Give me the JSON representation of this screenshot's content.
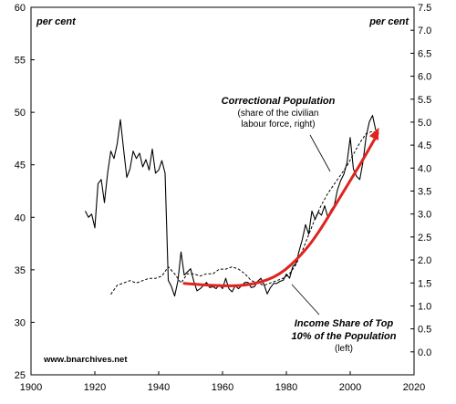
{
  "chart_data": {
    "type": "line",
    "xlim": [
      1900,
      2020
    ],
    "x_ticks": [
      "1900",
      "1920",
      "1940",
      "1960",
      "1980",
      "2000",
      "2020"
    ],
    "y_left": {
      "unit_label": "per cent",
      "ylim": [
        25,
        60
      ],
      "ticks": [
        "25",
        "30",
        "35",
        "40",
        "45",
        "50",
        "55",
        "60"
      ]
    },
    "y_right": {
      "unit_label": "per cent",
      "ylim": [
        -0.5,
        7.5
      ],
      "ticks": [
        "0.0",
        "0.5",
        "1.0",
        "1.5",
        "2.0",
        "2.5",
        "3.0",
        "3.5",
        "4.0",
        "4.5",
        "5.0",
        "5.5",
        "6.0",
        "6.5",
        "7.0",
        "7.5"
      ]
    },
    "grid": false,
    "series": [
      {
        "name": "Income Share of Top 10% of the Population",
        "axis": "left",
        "style": "solid",
        "x": [
          1917,
          1918,
          1919,
          1920,
          1921,
          1922,
          1923,
          1924,
          1925,
          1926,
          1927,
          1928,
          1929,
          1930,
          1931,
          1932,
          1933,
          1934,
          1935,
          1936,
          1937,
          1938,
          1939,
          1940,
          1941,
          1942,
          1943,
          1944,
          1945,
          1946,
          1947,
          1948,
          1949,
          1950,
          1951,
          1952,
          1953,
          1954,
          1955,
          1956,
          1957,
          1958,
          1959,
          1960,
          1961,
          1962,
          1963,
          1964,
          1965,
          1966,
          1967,
          1968,
          1969,
          1970,
          1971,
          1972,
          1973,
          1974,
          1975,
          1976,
          1977,
          1978,
          1979,
          1980,
          1981,
          1982,
          1983,
          1984,
          1985,
          1986,
          1987,
          1988,
          1989,
          1990,
          1991,
          1992,
          1993,
          1994,
          1995,
          1996,
          1997,
          1998,
          1999,
          2000,
          2001,
          2002,
          2003,
          2004,
          2005,
          2006,
          2007,
          2008
        ],
        "values": [
          40.6,
          40.0,
          40.3,
          39.0,
          43.2,
          43.6,
          41.4,
          44.2,
          46.3,
          45.6,
          47.0,
          49.3,
          46.5,
          43.8,
          44.6,
          46.3,
          45.6,
          46.1,
          44.8,
          45.5,
          44.5,
          46.5,
          44.2,
          44.5,
          45.4,
          44.2,
          34.0,
          33.4,
          32.5,
          33.9,
          36.7,
          34.5,
          34.8,
          35.1,
          33.9,
          33.0,
          33.2,
          33.5,
          33.8,
          33.3,
          33.4,
          33.2,
          33.6,
          33.2,
          34.2,
          33.2,
          32.9,
          33.5,
          33.2,
          33.5,
          33.8,
          33.8,
          33.3,
          33.4,
          33.9,
          34.2,
          33.6,
          32.7,
          33.3,
          33.7,
          33.7,
          33.9,
          34.0,
          34.6,
          34.2,
          35.3,
          35.6,
          36.8,
          37.9,
          39.3,
          38.4,
          40.6,
          39.8,
          40.5,
          40.2,
          41.1,
          40.0,
          40.7,
          41.1,
          42.6,
          43.5,
          44.1,
          45.2,
          47.6,
          44.6,
          43.9,
          43.6,
          45.3,
          47.7,
          49.1,
          49.7,
          48.3
        ]
      },
      {
        "name": "Correctional Population",
        "axis": "right",
        "style": "dashed",
        "x": [
          1925,
          1927,
          1929,
          1931,
          1933,
          1935,
          1937,
          1939,
          1941,
          1943,
          1945,
          1947,
          1949,
          1951,
          1953,
          1955,
          1957,
          1959,
          1961,
          1963,
          1965,
          1967,
          1969,
          1971,
          1973,
          1975,
          1977,
          1979,
          1981,
          1983,
          1985,
          1987,
          1989,
          1991,
          1993,
          1995,
          1997,
          1999,
          2001,
          2003,
          2005,
          2007,
          2009
        ],
        "values": [
          1.25,
          1.45,
          1.5,
          1.55,
          1.5,
          1.55,
          1.6,
          1.6,
          1.65,
          1.85,
          1.7,
          1.5,
          1.7,
          1.7,
          1.65,
          1.7,
          1.7,
          1.8,
          1.8,
          1.85,
          1.8,
          1.7,
          1.55,
          1.5,
          1.45,
          1.5,
          1.55,
          1.6,
          1.7,
          1.9,
          2.2,
          2.55,
          2.9,
          3.2,
          3.45,
          3.65,
          3.85,
          4.05,
          4.3,
          4.55,
          4.75,
          4.8,
          4.75
        ]
      }
    ],
    "trend_arrow": {
      "color": "#e0231e",
      "x": [
        1948,
        1960,
        1970,
        1978,
        1985,
        1990,
        1995,
        2000,
        2005,
        2009
      ],
      "values": [
        33.7,
        33.4,
        33.6,
        34.5,
        36.5,
        38.5,
        41.0,
        43.5,
        46.0,
        48.2
      ]
    },
    "annotations": {
      "correctional_title": "Correctional Population",
      "correctional_sub1": "(share of the civilian",
      "correctional_sub2": "labour force, right)",
      "income_line1": "Income Share of Top",
      "income_line2": "10% of the Population",
      "income_line3": "(left)",
      "credit": "www.bnarchives.net"
    }
  }
}
